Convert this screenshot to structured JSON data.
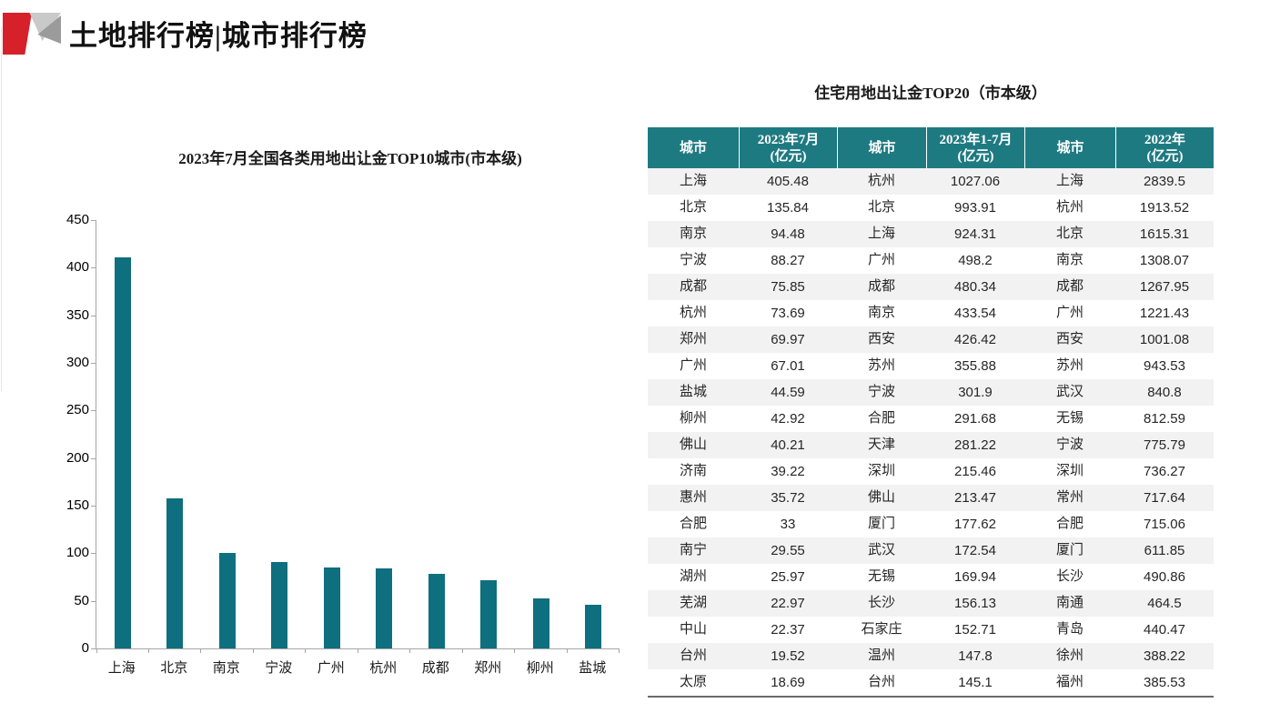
{
  "header": {
    "title": "土地排行榜|城市排行榜"
  },
  "colors": {
    "bar_teal": "#0E6F7E",
    "table_header_teal": "#1E7A81",
    "row_stripe": "#F2F2F2",
    "logo_red": "#D6212B"
  },
  "chart_data": [
    {
      "type": "bar",
      "title": "2023年7月全国各类用地出让金TOP10城市(市本级)",
      "categories": [
        "上海",
        "北京",
        "南京",
        "宁波",
        "广州",
        "杭州",
        "成都",
        "郑州",
        "柳州",
        "盐城"
      ],
      "values": [
        411,
        158,
        100,
        91,
        85,
        84,
        78,
        72,
        53,
        46
      ],
      "ylim": [
        0,
        450
      ],
      "ytick_interval": 50,
      "bar_color": "#0E6F7E",
      "grid": false,
      "legend": false
    },
    {
      "type": "table",
      "title": "住宅用地出让金TOP20（市本级）",
      "columns": [
        [
          "城市"
        ],
        [
          "2023年7月",
          "(亿元)"
        ],
        [
          "城市"
        ],
        [
          "2023年1-7月",
          "(亿元)"
        ],
        [
          "城市"
        ],
        [
          "2022年",
          "(亿元)"
        ]
      ],
      "rows": [
        [
          "上海",
          "405.48",
          "杭州",
          "1027.06",
          "上海",
          "2839.5"
        ],
        [
          "北京",
          "135.84",
          "北京",
          "993.91",
          "杭州",
          "1913.52"
        ],
        [
          "南京",
          "94.48",
          "上海",
          "924.31",
          "北京",
          "1615.31"
        ],
        [
          "宁波",
          "88.27",
          "广州",
          "498.2",
          "南京",
          "1308.07"
        ],
        [
          "成都",
          "75.85",
          "成都",
          "480.34",
          "成都",
          "1267.95"
        ],
        [
          "杭州",
          "73.69",
          "南京",
          "433.54",
          "广州",
          "1221.43"
        ],
        [
          "郑州",
          "69.97",
          "西安",
          "426.42",
          "西安",
          "1001.08"
        ],
        [
          "广州",
          "67.01",
          "苏州",
          "355.88",
          "苏州",
          "943.53"
        ],
        [
          "盐城",
          "44.59",
          "宁波",
          "301.9",
          "武汉",
          "840.8"
        ],
        [
          "柳州",
          "42.92",
          "合肥",
          "291.68",
          "无锡",
          "812.59"
        ],
        [
          "佛山",
          "40.21",
          "天津",
          "281.22",
          "宁波",
          "775.79"
        ],
        [
          "济南",
          "39.22",
          "深圳",
          "215.46",
          "深圳",
          "736.27"
        ],
        [
          "惠州",
          "35.72",
          "佛山",
          "213.47",
          "常州",
          "717.64"
        ],
        [
          "合肥",
          "33",
          "厦门",
          "177.62",
          "合肥",
          "715.06"
        ],
        [
          "南宁",
          "29.55",
          "武汉",
          "172.54",
          "厦门",
          "611.85"
        ],
        [
          "湖州",
          "25.97",
          "无锡",
          "169.94",
          "长沙",
          "490.86"
        ],
        [
          "芜湖",
          "22.97",
          "长沙",
          "156.13",
          "南通",
          "464.5"
        ],
        [
          "中山",
          "22.37",
          "石家庄",
          "152.71",
          "青岛",
          "440.47"
        ],
        [
          "台州",
          "19.52",
          "温州",
          "147.8",
          "徐州",
          "388.22"
        ],
        [
          "太原",
          "18.69",
          "台州",
          "145.1",
          "福州",
          "385.53"
        ]
      ]
    }
  ]
}
